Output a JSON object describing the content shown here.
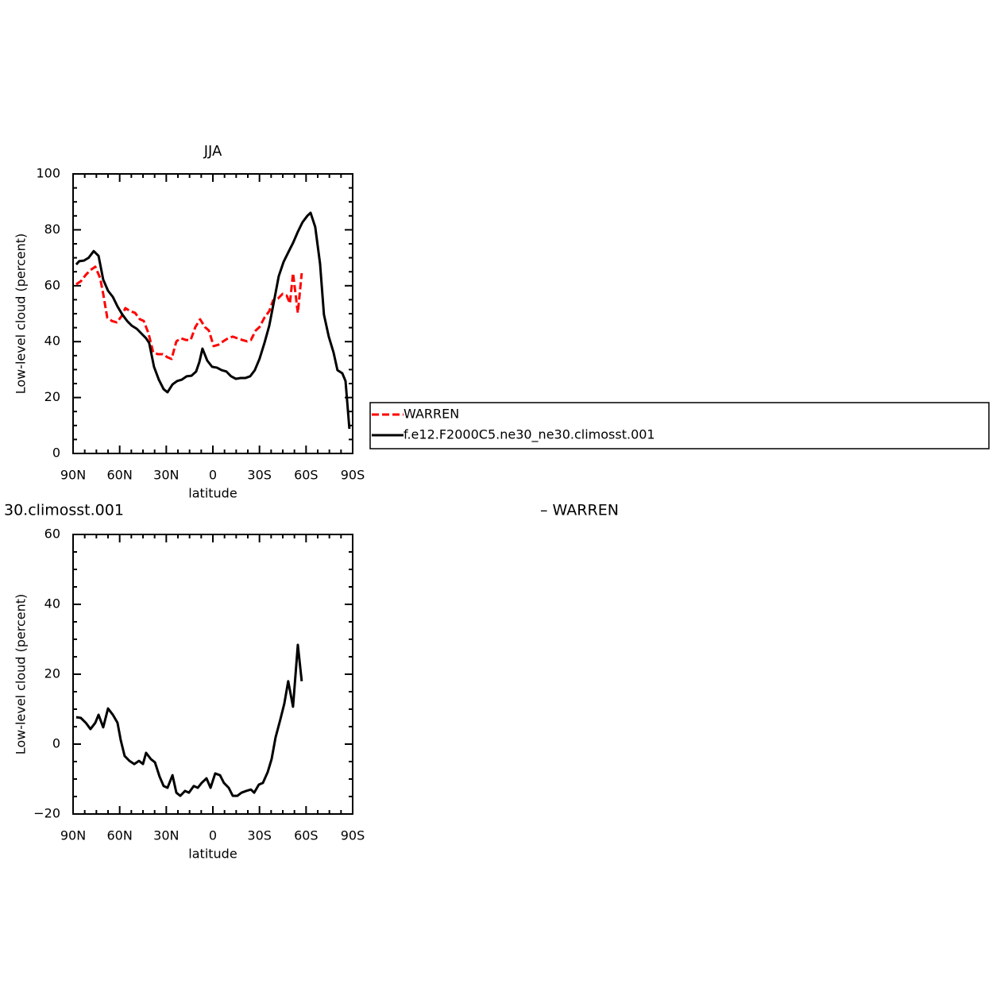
{
  "chart_data": [
    {
      "type": "line",
      "title": "JJA",
      "xlabel": "latitude",
      "ylabel": "Low-level cloud (percent)",
      "xlim": [
        90,
        -90
      ],
      "xticks": [
        {
          "value": 90,
          "label": "90N"
        },
        {
          "value": 60,
          "label": "60N"
        },
        {
          "value": 30,
          "label": "30N"
        },
        0,
        {
          "value": -30,
          "label": "30S"
        },
        {
          "value": -60,
          "label": "60S"
        },
        {
          "value": -90,
          "label": "90S"
        }
      ],
      "ylim": [
        0,
        100
      ],
      "yticks": [
        0,
        20,
        40,
        60,
        80,
        100
      ],
      "series": [
        {
          "name": "WARREN",
          "color": "#ff0000",
          "dashed": true,
          "x": [
            88,
            85,
            81.8,
            78.8,
            75.7,
            72.6,
            70.6,
            68,
            65,
            61.9,
            58.8,
            56.3,
            53.2,
            50.1,
            47,
            44.5,
            41.4,
            38.4,
            35.3,
            32.2,
            29.2,
            26.6,
            23.5,
            20.5,
            17.4,
            14.3,
            11.3,
            8.2,
            5.1,
            2.6,
            -0.5,
            -3.6,
            -6.6,
            -9.7,
            -12.8,
            -15.8,
            -18.9,
            -22,
            -24.5,
            -27.6,
            -30,
            -33.2,
            -36.3,
            -38.8,
            -41.9,
            -44.9,
            -47.5,
            -49.6,
            -51.6,
            -54.7,
            -57.2
          ],
          "values": [
            60.5,
            61.6,
            63.9,
            65.6,
            66.8,
            62.8,
            57.1,
            48.6,
            47.4,
            46.9,
            49.1,
            52,
            50.9,
            50.3,
            48,
            47.4,
            42.9,
            36.1,
            35.5,
            35.5,
            34.4,
            33.8,
            40.1,
            41.2,
            40.6,
            40.6,
            45.2,
            48,
            45.2,
            44,
            38.4,
            38.9,
            40.1,
            41.2,
            41.8,
            41.2,
            40.6,
            40.1,
            40.6,
            44,
            45.2,
            48.6,
            50.9,
            54.8,
            55.4,
            57.1,
            56.5,
            53.7,
            64.5,
            50.3,
            64.5
          ]
        },
        {
          "name": "f.e12.F2000C5.ne30_ne30.climosst.001",
          "color": "#000000",
          "dashed": false,
          "x": [
            88,
            86,
            83,
            80,
            76.7,
            73.6,
            70.6,
            67.5,
            64.4,
            61.4,
            58.3,
            55.2,
            52.2,
            49,
            46,
            43,
            41,
            37.9,
            34.8,
            31.7,
            29.2,
            26,
            23,
            20,
            16.9,
            13.8,
            10.8,
            8.7,
            6.7,
            3.6,
            0.5,
            -2.6,
            -5.6,
            -8.7,
            -11.7,
            -14.8,
            -17.9,
            -21,
            -24,
            -27,
            -30,
            -33.2,
            -36.3,
            -39.3,
            -42.4,
            -45.5,
            -48.5,
            -51.6,
            -54.7,
            -57.7,
            -60.8,
            -62.9,
            -65.9,
            -69,
            -71.5,
            -74.6,
            -77.7,
            -80.2,
            -83.3,
            -85.4,
            -87.9
          ],
          "values": [
            67.6,
            68.8,
            69,
            70,
            72.4,
            70.7,
            62.2,
            58.2,
            56,
            52.6,
            49.7,
            47.4,
            45.7,
            44.6,
            42.9,
            41.2,
            39.5,
            31,
            26.4,
            23,
            21.9,
            24.7,
            25.9,
            26.4,
            27.6,
            27.8,
            29.3,
            32.7,
            37.5,
            33.2,
            31,
            30.7,
            29.8,
            29.3,
            27.6,
            26.7,
            27,
            27,
            27.6,
            29.8,
            33.8,
            39.5,
            45.7,
            54.3,
            63.4,
            68.5,
            71.9,
            75.3,
            79.3,
            82.7,
            85,
            86.1,
            81,
            67.9,
            49.7,
            41.8,
            36.1,
            29.8,
            28.7,
            25.9,
            8.8
          ]
        }
      ]
    },
    {
      "type": "line",
      "xlabel": "latitude",
      "ylabel": "Low-level cloud (percent)",
      "annotations": [
        "30.climosst.001",
        "– WARREN"
      ],
      "xlim": [
        90,
        -90
      ],
      "xticks": [
        {
          "value": 90,
          "label": "90N"
        },
        {
          "value": 60,
          "label": "60N"
        },
        {
          "value": 30,
          "label": "30N"
        },
        0,
        {
          "value": -30,
          "label": "30S"
        },
        {
          "value": -60,
          "label": "60S"
        },
        {
          "value": -90,
          "label": "90S"
        }
      ],
      "ylim": [
        -20,
        60
      ],
      "yticks": [
        {
          "value": -20,
          "label": "−20"
        },
        0,
        20,
        40,
        60
      ],
      "series": [
        {
          "color": "#000000",
          "dashed": false,
          "x": [
            88,
            85,
            81.8,
            78.8,
            75.7,
            73.6,
            70.6,
            67.5,
            64.4,
            61.4,
            59.3,
            56.8,
            53.7,
            50.6,
            47.6,
            45,
            43,
            39.9,
            37.3,
            34.3,
            31.7,
            29.2,
            26,
            23.5,
            21,
            17.9,
            15.4,
            12.3,
            9.7,
            7.2,
            4.1,
            1.5,
            -1.5,
            -4.6,
            -7.1,
            -10.2,
            -12.8,
            -15.8,
            -18.4,
            -21.5,
            -24.5,
            -26.6,
            -29.6,
            -32.2,
            -35.3,
            -37.8,
            -40.4,
            -43.4,
            -46,
            -48.5,
            -51.6,
            -54.7,
            -57.2
          ],
          "values": [
            7.7,
            7.5,
            6.1,
            4.3,
            6.1,
            8.4,
            4.8,
            10.2,
            8.4,
            6.1,
            1.1,
            -3.4,
            -4.8,
            -5.7,
            -4.8,
            -5.7,
            -2.5,
            -4.3,
            -5.2,
            -9.3,
            -12,
            -12.5,
            -8.9,
            -13.9,
            -14.8,
            -13.4,
            -13.9,
            -12,
            -12.5,
            -11.1,
            -9.8,
            -12.5,
            -8.4,
            -8.9,
            -11.1,
            -12.5,
            -14.8,
            -14.8,
            -13.9,
            -13.4,
            -13,
            -13.9,
            -11.6,
            -11.1,
            -8,
            -4.3,
            2,
            7,
            11.6,
            18,
            10.7,
            28.4,
            18
          ]
        }
      ]
    }
  ]
}
